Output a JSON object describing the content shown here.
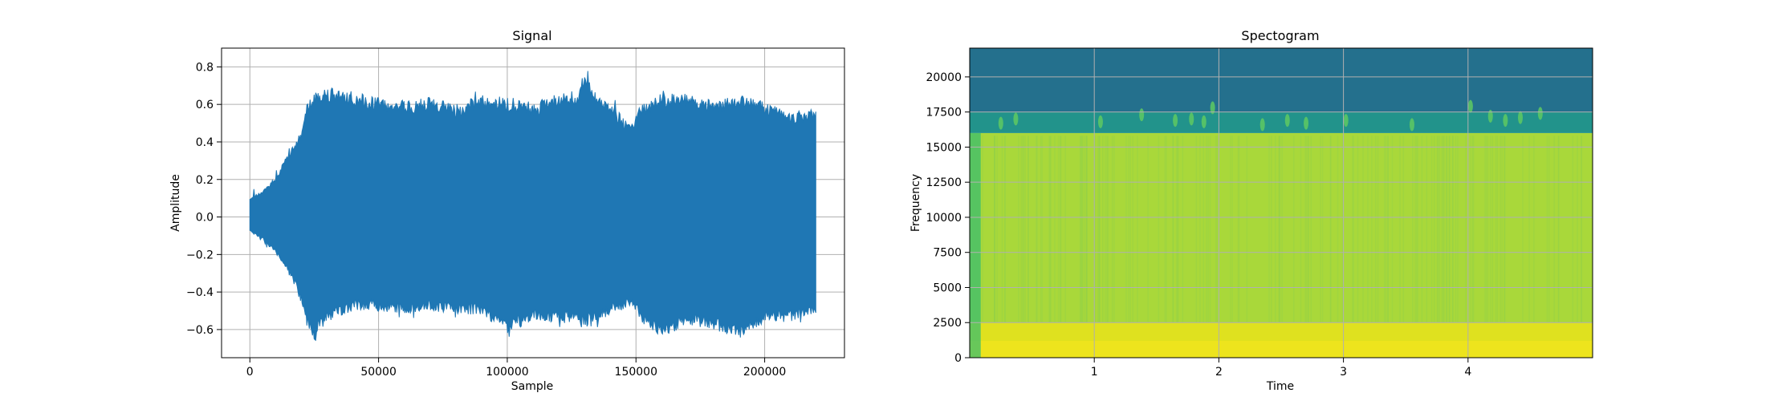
{
  "chart_data": [
    {
      "type": "line",
      "title": "Signal",
      "xlabel": "Sample",
      "ylabel": "Amplitude",
      "xlim": [
        -11000,
        231000
      ],
      "ylim": [
        -0.75,
        0.9
      ],
      "xticks": [
        0,
        50000,
        100000,
        150000,
        200000
      ],
      "xtick_labels": [
        "0",
        "50000",
        "100000",
        "150000",
        "200000"
      ],
      "yticks": [
        -0.6,
        -0.4,
        -0.2,
        0.0,
        0.2,
        0.4,
        0.6,
        0.8
      ],
      "ytick_labels": [
        "−0.6",
        "−0.4",
        "−0.2",
        "0.0",
        "0.2",
        "0.4",
        "0.6",
        "0.8"
      ],
      "grid": true,
      "series": [
        {
          "color": "#1f77b4",
          "envelope": {
            "x": [
              0,
              5000,
              10000,
              15000,
              20000,
              22000,
              25000,
              30000,
              40000,
              50000,
              60000,
              70000,
              80000,
              90000,
              100000,
              110000,
              120000,
              128000,
              130000,
              135000,
              140000,
              148000,
              152000,
              160000,
              170000,
              180000,
              190000,
              200000,
              210000,
              220000
            ],
            "upper": [
              0.1,
              0.14,
              0.22,
              0.34,
              0.46,
              0.6,
              0.68,
              0.7,
              0.66,
              0.64,
              0.62,
              0.64,
              0.6,
              0.66,
              0.64,
              0.6,
              0.66,
              0.68,
              0.82,
              0.66,
              0.6,
              0.5,
              0.6,
              0.66,
              0.66,
              0.62,
              0.66,
              0.62,
              0.56,
              0.58
            ],
            "lower": [
              -0.08,
              -0.12,
              -0.2,
              -0.3,
              -0.46,
              -0.58,
              -0.66,
              -0.56,
              -0.5,
              -0.5,
              -0.52,
              -0.5,
              -0.52,
              -0.52,
              -0.62,
              -0.56,
              -0.56,
              -0.56,
              -0.58,
              -0.56,
              -0.52,
              -0.48,
              -0.56,
              -0.64,
              -0.58,
              -0.6,
              -0.66,
              -0.56,
              -0.56,
              -0.52
            ]
          }
        }
      ]
    },
    {
      "type": "heatmap",
      "title": "Spectogram",
      "xlabel": "Time",
      "ylabel": "Frequency",
      "xlim": [
        0,
        5.0
      ],
      "ylim": [
        0,
        22050
      ],
      "xticks": [
        1,
        2,
        3,
        4
      ],
      "xtick_labels": [
        "1",
        "2",
        "3",
        "4"
      ],
      "yticks": [
        0,
        2500,
        5000,
        7500,
        10000,
        12500,
        15000,
        17500,
        20000
      ],
      "ytick_labels": [
        "0",
        "2500",
        "5000",
        "7500",
        "10000",
        "12500",
        "15000",
        "17500",
        "20000"
      ],
      "grid": true,
      "colormap": "viridis",
      "bands": [
        {
          "from": 0,
          "to": 2500,
          "color": "#dfe11f"
        },
        {
          "from": 2500,
          "to": 16000,
          "color": "#a9d83a"
        },
        {
          "from": 16000,
          "to": 17500,
          "color": "#22938b"
        },
        {
          "from": 17500,
          "to": 22050,
          "color": "#24708d"
        }
      ],
      "onset_color": "#3bbd6f",
      "onset_end_time": 0.05,
      "bursts": [
        {
          "t": 0.25,
          "f": 16700
        },
        {
          "t": 0.37,
          "f": 17000
        },
        {
          "t": 1.05,
          "f": 16800
        },
        {
          "t": 1.38,
          "f": 17300
        },
        {
          "t": 1.65,
          "f": 16900
        },
        {
          "t": 1.78,
          "f": 17000
        },
        {
          "t": 1.88,
          "f": 16800
        },
        {
          "t": 1.95,
          "f": 17800
        },
        {
          "t": 2.35,
          "f": 16600
        },
        {
          "t": 2.55,
          "f": 16900
        },
        {
          "t": 2.7,
          "f": 16700
        },
        {
          "t": 3.02,
          "f": 16900
        },
        {
          "t": 3.55,
          "f": 16600
        },
        {
          "t": 4.02,
          "f": 17900
        },
        {
          "t": 4.18,
          "f": 17200
        },
        {
          "t": 4.3,
          "f": 16900
        },
        {
          "t": 4.42,
          "f": 17100
        },
        {
          "t": 4.58,
          "f": 17400
        }
      ]
    }
  ]
}
